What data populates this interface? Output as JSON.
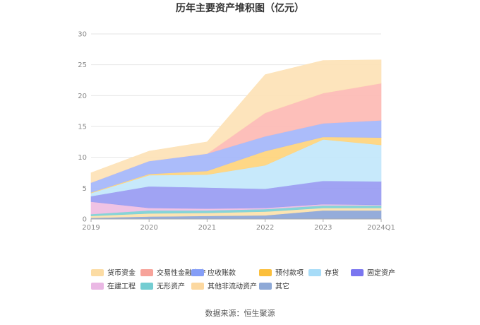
{
  "chart_data": {
    "type": "area",
    "title": "历年主要资产堆积图（亿元）",
    "source": "数据来源：恒生聚源",
    "x": [
      "2019",
      "2020",
      "2021",
      "2022",
      "2023",
      "2024Q1"
    ],
    "ylim": [
      0,
      30
    ],
    "yticks": [
      0,
      5,
      10,
      15,
      20,
      25,
      30
    ],
    "grid": true,
    "legend_position": "bottom",
    "series": [
      {
        "name": "其它",
        "color": "#8fa8d8",
        "values": [
          0.2,
          0.4,
          0.5,
          0.6,
          1.4,
          1.4
        ]
      },
      {
        "name": "其他非流动资产",
        "color": "#fde3ae",
        "values": [
          0.3,
          0.5,
          0.5,
          0.6,
          0.4,
          0.4
        ]
      },
      {
        "name": "无形资产",
        "color": "#7fd2d6",
        "values": [
          0.3,
          0.5,
          0.4,
          0.4,
          0.4,
          0.4
        ]
      },
      {
        "name": "在建工程",
        "color": "#efc0e3",
        "values": [
          2.0,
          0.4,
          0.3,
          0.2,
          0.2,
          0.1
        ]
      },
      {
        "name": "固定资产",
        "color": "#9b9ef2",
        "values": [
          0.9,
          3.5,
          3.4,
          3.1,
          3.8,
          3.8
        ]
      },
      {
        "name": "存货",
        "color": "#c4e8fb",
        "values": [
          0.5,
          1.8,
          2.1,
          3.8,
          6.7,
          5.9
        ]
      },
      {
        "name": "预付款项",
        "color": "#fed580",
        "values": [
          0.1,
          0.2,
          0.6,
          2.3,
          0.4,
          1.2
        ]
      },
      {
        "name": "应收账款",
        "color": "#a7b8fa",
        "values": [
          1.6,
          2.1,
          2.8,
          2.4,
          2.2,
          2.8
        ]
      },
      {
        "name": "交易性金融资产",
        "color": "#fdbcb6",
        "values": [
          0.0,
          0.0,
          0.0,
          3.8,
          4.9,
          6.0
        ]
      },
      {
        "name": "货币资金",
        "color": "#fde3b8",
        "values": [
          1.6,
          1.6,
          1.9,
          6.2,
          5.3,
          3.8
        ]
      }
    ],
    "legend_order": [
      "货币资金",
      "交易性金融资产",
      "应收账款",
      "预付款项",
      "存货",
      "固定资产",
      "在建工程",
      "无形资产",
      "其他非流动资产",
      "其它"
    ],
    "legend_markers": {
      "货币资金": "#fcdca4",
      "交易性金融资产": "#f7a39a",
      "应收账款": "#859ef7",
      "预付款项": "#fbbf3c",
      "存货": "#a7dcf8",
      "固定资产": "#7a76f0",
      "在建工程": "#eab8e4",
      "无形资产": "#74cdd2",
      "其他非流动资产": "#fcd8a0",
      "其它": "#8ea9d7"
    }
  }
}
